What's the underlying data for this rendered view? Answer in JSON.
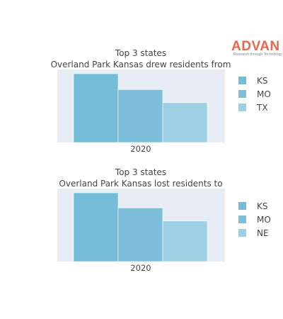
{
  "logo": {
    "text": "ADVAN",
    "tagline": "Research through Technology",
    "color": "#e8684a"
  },
  "chart_data": [
    {
      "type": "bar",
      "title_line1": "Top 3 states",
      "title_line2": "Overland Park Kansas drew residents from",
      "categories": [
        "2020"
      ],
      "series": [
        {
          "name": "KS",
          "values": [
            100
          ],
          "color": "#74bcd8"
        },
        {
          "name": "MO",
          "values": [
            77
          ],
          "color": "#7dbfdb"
        },
        {
          "name": "TX",
          "values": [
            58
          ],
          "color": "#9ed0e4"
        }
      ],
      "ylim": [
        0,
        100
      ],
      "grid": false,
      "legend": "right"
    },
    {
      "type": "bar",
      "title_line1": "Top 3 states",
      "title_line2": "Overland Park Kansas lost residents to",
      "categories": [
        "2020"
      ],
      "series": [
        {
          "name": "KS",
          "values": [
            100
          ],
          "color": "#74bcd8"
        },
        {
          "name": "MO",
          "values": [
            78
          ],
          "color": "#7dbfdb"
        },
        {
          "name": "NE",
          "values": [
            59
          ],
          "color": "#9ed0e4"
        }
      ],
      "ylim": [
        0,
        100
      ],
      "grid": false,
      "legend": "right"
    }
  ]
}
